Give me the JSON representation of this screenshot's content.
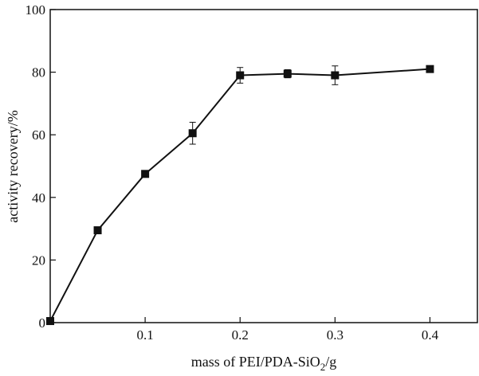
{
  "chart_data": {
    "type": "line",
    "title": "",
    "xlabel": "mass of PEI/PDA-SiO",
    "xlabel_subscript": "2",
    "xlabel_suffix": "/g",
    "ylabel": "activity recovery/%",
    "xlim": [
      0,
      0.45
    ],
    "ylim": [
      0,
      100
    ],
    "x_ticks": [
      0.1,
      0.2,
      0.3,
      0.4
    ],
    "x_tick_labels": [
      "0.1",
      "0.2",
      "0.3",
      "0.4"
    ],
    "y_ticks": [
      0,
      20,
      40,
      60,
      80,
      100
    ],
    "y_tick_labels": [
      "0",
      "20",
      "40",
      "60",
      "80",
      "100"
    ],
    "grid": false,
    "marker": "square",
    "color": "#111111",
    "series": [
      {
        "x": [
          0,
          0.05,
          0.1,
          0.15,
          0.2,
          0.25,
          0.3,
          0.4
        ],
        "y": [
          0.5,
          29.5,
          47.5,
          60.5,
          79,
          79.5,
          79,
          81
        ],
        "error": [
          0,
          0,
          1,
          3.5,
          2.5,
          1.3,
          3,
          0
        ]
      }
    ]
  }
}
